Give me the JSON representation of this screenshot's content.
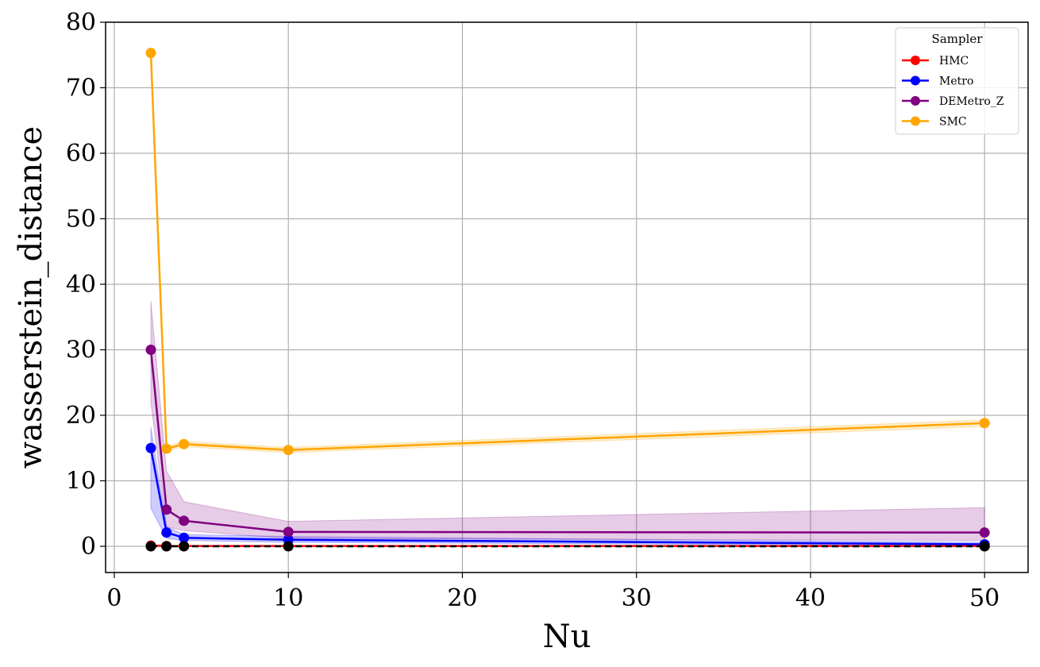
{
  "chart_data": {
    "type": "line",
    "xlabel": "Nu",
    "ylabel": "wasserstein_distance",
    "xlim": [
      -0.5,
      52.5
    ],
    "ylim": [
      -4,
      80
    ],
    "xticks": [
      0,
      10,
      20,
      30,
      40,
      50
    ],
    "yticks": [
      0,
      10,
      20,
      30,
      40,
      50,
      60,
      70,
      80
    ],
    "grid": true,
    "legend": {
      "title": "Sampler",
      "placement": "top-right"
    },
    "x": [
      2.1,
      3,
      4,
      10,
      50
    ],
    "series": [
      {
        "name": "HMC",
        "color": "#ff0000",
        "values": [
          0.1,
          0.05,
          0.05,
          0.05,
          0.05
        ],
        "lower": [
          0.0,
          0.0,
          0.0,
          0.0,
          0.0
        ],
        "upper": [
          0.3,
          0.1,
          0.1,
          0.1,
          0.1
        ]
      },
      {
        "name": "Metro",
        "color": "#0000ff",
        "values": [
          15.0,
          2.1,
          1.3,
          1.0,
          0.3
        ],
        "lower": [
          5.8,
          1.2,
          0.9,
          0.6,
          0.1
        ],
        "upper": [
          18.2,
          3.0,
          1.8,
          1.5,
          0.6
        ]
      },
      {
        "name": "DEMetro_Z",
        "color": "#800080",
        "values": [
          30.0,
          5.6,
          3.9,
          2.2,
          2.1
        ],
        "lower": [
          22.0,
          3.0,
          2.4,
          1.2,
          0.9
        ],
        "upper": [
          37.4,
          11.5,
          6.8,
          3.8,
          5.9
        ]
      },
      {
        "name": "SMC",
        "color": "#ffa500",
        "values": [
          75.3,
          14.9,
          15.6,
          14.7,
          18.8
        ],
        "lower": [
          75.0,
          14.5,
          15.2,
          14.3,
          18.3
        ],
        "upper": [
          75.6,
          15.3,
          16.0,
          15.1,
          19.3
        ]
      }
    ],
    "reference": {
      "color": "#000000",
      "values": [
        0,
        0,
        0,
        0,
        0
      ]
    }
  }
}
